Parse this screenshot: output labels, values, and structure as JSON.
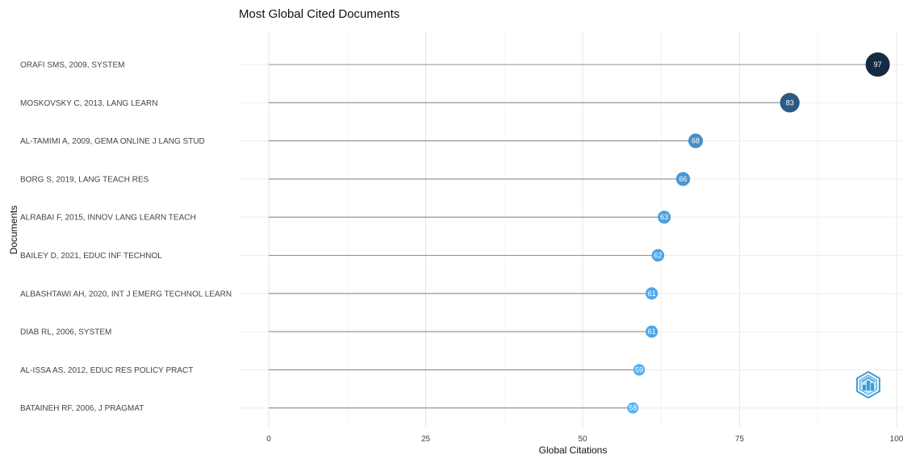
{
  "chart_data": {
    "type": "lollipop",
    "title": "Most Global Cited Documents",
    "xlabel": "Global Citations",
    "ylabel": "Documents",
    "xlim": [
      0,
      100
    ],
    "xticks": [
      0,
      25,
      50,
      75,
      100
    ],
    "grid": true,
    "legend": "none",
    "categories": [
      "ORAFI SMS, 2009, SYSTEM",
      "MOSKOVSKY C, 2013, LANG LEARN",
      "AL-TAMIMI A, 2009, GEMA ONLINE J LANG STUD",
      "BORG S, 2019, LANG TEACH RES",
      "ALRABAI F, 2015, INNOV LANG LEARN TEACH",
      "BAILEY D, 2021, EDUC INF TECHNOL",
      "ALBASHTAWI AH, 2020, INT J EMERG TECHNOL LEARN",
      "DIAB RL, 2006, SYSTEM",
      "AL-ISSA AS, 2012, EDUC RES POLICY PRACT",
      "BATAINEH RF, 2006, J PRAGMAT"
    ],
    "values": [
      97,
      83,
      68,
      66,
      63,
      62,
      61,
      61,
      59,
      58
    ],
    "color_scale": {
      "low": "#56b1f7",
      "high": "#132b43"
    }
  },
  "logo": {
    "name": "bibliometrix-logo-icon",
    "color": "#3a9bd9"
  }
}
